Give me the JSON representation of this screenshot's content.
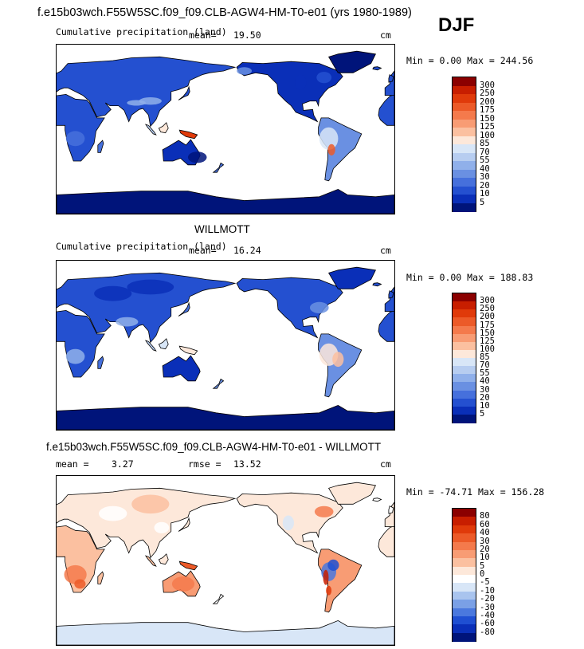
{
  "main_title": "f.e15b03wch.F55W5SC.f09_f09.CLB-AGW4-HM-T0-e01 (yrs 1980-1989)",
  "season": "DJF",
  "panels": [
    {
      "subtitle": "",
      "left_label": "Cumulative precipitation (land)",
      "mean_label": "mean=",
      "mean_value": "19.50",
      "rmse_label": "",
      "rmse_value": "",
      "units": "cm",
      "minmax": "Min =    0.00 Max = 244.56",
      "levels": [
        "300",
        "250",
        "200",
        "175",
        "150",
        "125",
        "100",
        "85",
        "70",
        "55",
        "40",
        "30",
        "20",
        "10",
        "5"
      ],
      "colors": [
        "#8b0000",
        "#c81e00",
        "#e03a0a",
        "#ec5a28",
        "#f47a4c",
        "#f89c74",
        "#fbc0a0",
        "#fde8da",
        "#d8e6f7",
        "#b7cdf0",
        "#90b0ea",
        "#6a90e2",
        "#4670dc",
        "#2450d0",
        "#0a2fb8",
        "#00147a"
      ],
      "land_class": "positive"
    },
    {
      "subtitle": "WILLMOTT",
      "left_label": "Cumulative precipitation (land)",
      "mean_label": "mean=",
      "mean_value": "16.24",
      "rmse_label": "",
      "rmse_value": "",
      "units": "cm",
      "minmax": "Min =    0.00 Max = 188.83",
      "levels": [
        "300",
        "250",
        "200",
        "175",
        "150",
        "125",
        "100",
        "85",
        "70",
        "55",
        "40",
        "30",
        "20",
        "10",
        "5"
      ],
      "colors": [
        "#8b0000",
        "#c81e00",
        "#e03a0a",
        "#ec5a28",
        "#f47a4c",
        "#f89c74",
        "#fbc0a0",
        "#fde8da",
        "#d8e6f7",
        "#b7cdf0",
        "#90b0ea",
        "#6a90e2",
        "#4670dc",
        "#2450d0",
        "#0a2fb8",
        "#00147a"
      ],
      "land_class": "positive"
    },
    {
      "subtitle": "f.e15b03wch.F55W5SC.f09_f09.CLB-AGW4-HM-T0-e01 - WILLMOTT",
      "left_label": "",
      "mean_label": "mean =",
      "mean_value": "3.27",
      "rmse_label": "rmse =",
      "rmse_value": "13.52",
      "units": "cm",
      "minmax": "Min = -74.71 Max = 156.28",
      "levels": [
        "80",
        "60",
        "40",
        "30",
        "20",
        "10",
        "5",
        "0",
        "-5",
        "-10",
        "-20",
        "-30",
        "-40",
        "-60",
        "-80"
      ],
      "colors": [
        "#8b0000",
        "#c81e00",
        "#e03a0a",
        "#ec5a28",
        "#f47a4c",
        "#f89c74",
        "#fbc0a0",
        "#fde8da",
        "#ffffff",
        "#d8e6f7",
        "#a9c4ee",
        "#7aa0e6",
        "#4a78de",
        "#1f4fd2",
        "#0a2fb8",
        "#00147a"
      ],
      "land_class": "difference"
    }
  ],
  "chart_data": [
    {
      "type": "heatmap",
      "title": "Cumulative precipitation (land)",
      "units": "cm",
      "mean": 19.5,
      "min": 0.0,
      "max": 244.56,
      "contour_levels": [
        5,
        10,
        20,
        30,
        40,
        55,
        70,
        85,
        100,
        125,
        150,
        175,
        200,
        250,
        300
      ]
    },
    {
      "type": "heatmap",
      "title": "WILLMOTT",
      "units": "cm",
      "mean": 16.24,
      "min": 0.0,
      "max": 188.83,
      "contour_levels": [
        5,
        10,
        20,
        30,
        40,
        55,
        70,
        85,
        100,
        125,
        150,
        175,
        200,
        250,
        300
      ]
    },
    {
      "type": "heatmap",
      "title": "f.e15b03wch.F55W5SC.f09_f09.CLB-AGW4-HM-T0-e01 - WILLMOTT",
      "units": "cm",
      "mean": 3.27,
      "rmse": 13.52,
      "min": -74.71,
      "max": 156.28,
      "contour_levels": [
        -80,
        -60,
        -40,
        -30,
        -20,
        -10,
        -5,
        0,
        5,
        10,
        20,
        30,
        40,
        60,
        80
      ]
    }
  ]
}
